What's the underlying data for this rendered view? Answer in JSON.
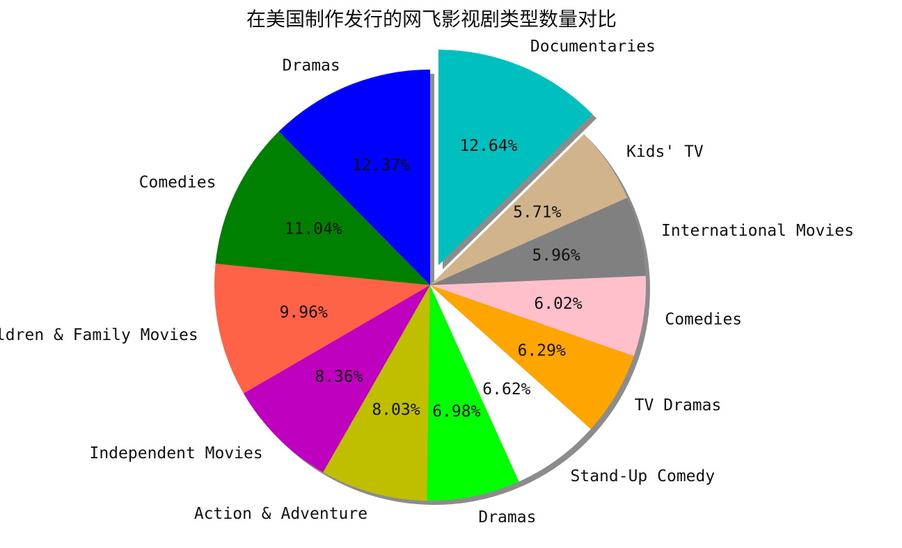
{
  "chart_data": {
    "type": "pie",
    "title": "在美国制作发行的网飞影视剧类型数量对比",
    "slices": [
      {
        "label": "Dramas",
        "pct_label": "12.37%",
        "value": 12.37,
        "color": "#0000ff",
        "explode": 0.0
      },
      {
        "label": "Comedies",
        "pct_label": "11.04%",
        "value": 11.04,
        "color": "#008000",
        "explode": 0.0
      },
      {
        "label": "Children & Family Movies",
        "pct_label": "9.96%",
        "value": 9.96,
        "color": "#ff6347",
        "explode": 0.0
      },
      {
        "label": "Independent Movies",
        "pct_label": "8.36%",
        "value": 8.36,
        "color": "#bf00bf",
        "explode": 0.0
      },
      {
        "label": "Action & Adventure",
        "pct_label": "8.03%",
        "value": 8.03,
        "color": "#bfbf00",
        "explode": 0.0
      },
      {
        "label": "Dramas",
        "pct_label": "6.98%",
        "value": 6.98,
        "color": "#00ff00",
        "explode": 0.0
      },
      {
        "label": "Stand-Up Comedy",
        "pct_label": "6.62%",
        "value": 6.62,
        "color": "#ffffff",
        "explode": 0.0
      },
      {
        "label": "TV Dramas",
        "pct_label": "6.29%",
        "value": 6.29,
        "color": "#ffa500",
        "explode": 0.0
      },
      {
        "label": "Comedies",
        "pct_label": "6.02%",
        "value": 6.02,
        "color": "#ffc0cb",
        "explode": 0.0
      },
      {
        "label": "International Movies",
        "pct_label": "5.96%",
        "value": 5.96,
        "color": "#808080",
        "explode": 0.0
      },
      {
        "label": "Kids' TV",
        "pct_label": "5.71%",
        "value": 5.71,
        "color": "#d2b48c",
        "explode": 0.0
      },
      {
        "label": "Documentaries",
        "pct_label": "12.64%",
        "value": 12.64,
        "color": "#00bfbf",
        "explode": 0.1
      }
    ],
    "shadow": true,
    "start": "top",
    "direction": "counterclockwise"
  }
}
